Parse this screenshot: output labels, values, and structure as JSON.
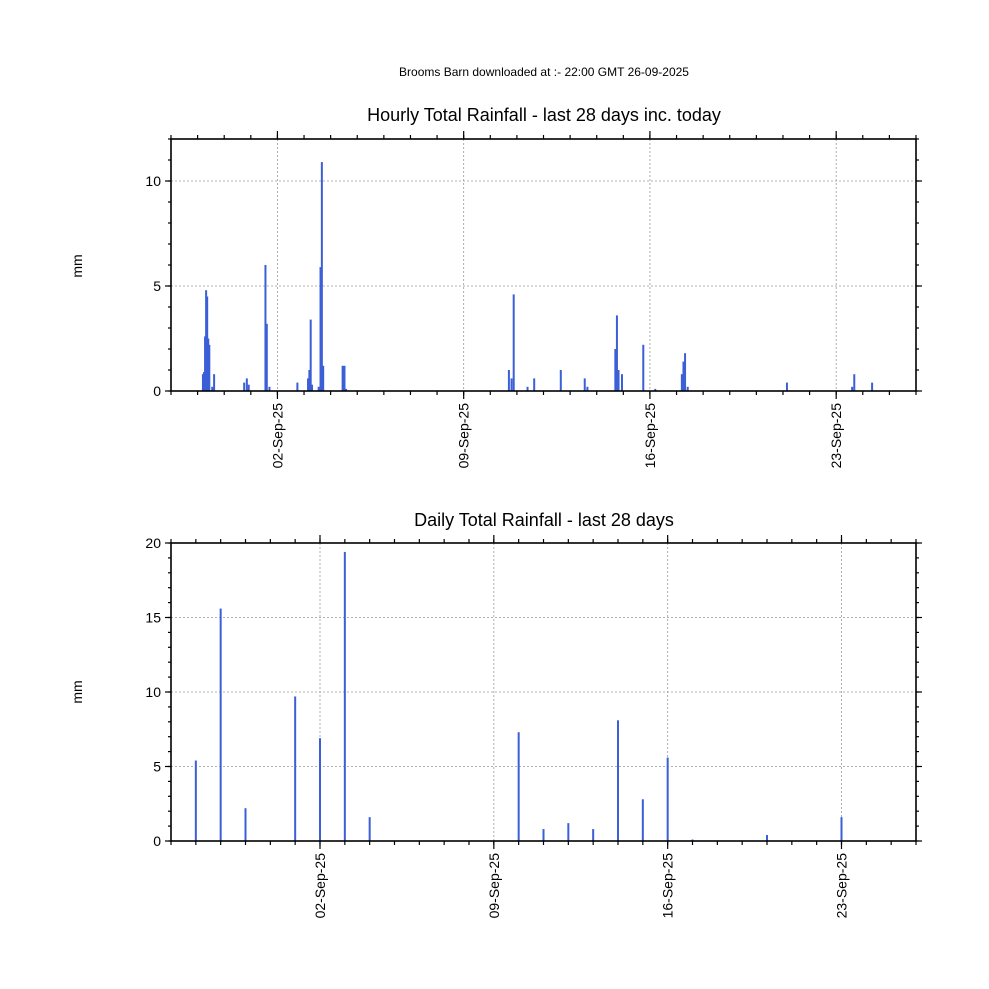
{
  "header": {
    "text": "Brooms Barn downloaded at :- 22:00 GMT 26-09-2025"
  },
  "chart_data": [
    {
      "type": "bar",
      "title": "Hourly Total Rainfall - last 28 days inc. today",
      "ylabel": "mm",
      "xlabel": "",
      "x_unit": "day (fractional, from 29-Aug-25 00:00)",
      "xlim": [
        0,
        28
      ],
      "ylim": [
        0,
        12
      ],
      "yticks": [
        0,
        5,
        10
      ],
      "xticks": [
        {
          "at": 4,
          "label": "02-Sep-25"
        },
        {
          "at": 11,
          "label": "09-Sep-25"
        },
        {
          "at": 18,
          "label": "16-Sep-25"
        },
        {
          "at": 25,
          "label": "23-Sep-25"
        }
      ],
      "grid": true,
      "color": "#3b5fd6",
      "bars": [
        {
          "x": 1.2,
          "y": 0.8
        },
        {
          "x": 1.24,
          "y": 0.9
        },
        {
          "x": 1.28,
          "y": 2.6
        },
        {
          "x": 1.32,
          "y": 4.8
        },
        {
          "x": 1.36,
          "y": 4.5
        },
        {
          "x": 1.4,
          "y": 2.5
        },
        {
          "x": 1.44,
          "y": 2.2
        },
        {
          "x": 1.55,
          "y": 0.2
        },
        {
          "x": 1.62,
          "y": 0.8
        },
        {
          "x": 2.75,
          "y": 0.4
        },
        {
          "x": 2.85,
          "y": 0.6
        },
        {
          "x": 2.92,
          "y": 0.3
        },
        {
          "x": 3.55,
          "y": 6.0
        },
        {
          "x": 3.6,
          "y": 3.2
        },
        {
          "x": 3.7,
          "y": 0.2
        },
        {
          "x": 4.75,
          "y": 0.4
        },
        {
          "x": 5.15,
          "y": 0.6
        },
        {
          "x": 5.2,
          "y": 1.0
        },
        {
          "x": 5.25,
          "y": 3.4
        },
        {
          "x": 5.3,
          "y": 0.3
        },
        {
          "x": 5.55,
          "y": 0.2
        },
        {
          "x": 5.62,
          "y": 5.9
        },
        {
          "x": 5.67,
          "y": 10.9
        },
        {
          "x": 5.72,
          "y": 1.2
        },
        {
          "x": 6.45,
          "y": 1.2
        },
        {
          "x": 6.52,
          "y": 1.2
        },
        {
          "x": 6.58,
          "y": 0.1
        },
        {
          "x": 12.7,
          "y": 1.0
        },
        {
          "x": 12.8,
          "y": 0.6
        },
        {
          "x": 12.88,
          "y": 4.6
        },
        {
          "x": 13.4,
          "y": 0.2
        },
        {
          "x": 13.65,
          "y": 0.6
        },
        {
          "x": 14.65,
          "y": 1.0
        },
        {
          "x": 15.55,
          "y": 0.6
        },
        {
          "x": 15.65,
          "y": 0.2
        },
        {
          "x": 16.7,
          "y": 2.0
        },
        {
          "x": 16.76,
          "y": 3.6
        },
        {
          "x": 16.82,
          "y": 1.0
        },
        {
          "x": 16.95,
          "y": 0.8
        },
        {
          "x": 17.75,
          "y": 2.2
        },
        {
          "x": 18.2,
          "y": 0.1
        },
        {
          "x": 19.2,
          "y": 0.8
        },
        {
          "x": 19.26,
          "y": 1.4
        },
        {
          "x": 19.32,
          "y": 1.8
        },
        {
          "x": 19.42,
          "y": 0.2
        },
        {
          "x": 23.15,
          "y": 0.4
        },
        {
          "x": 25.6,
          "y": 0.2
        },
        {
          "x": 25.68,
          "y": 0.8
        },
        {
          "x": 26.35,
          "y": 0.4
        }
      ]
    },
    {
      "type": "bar",
      "title": "Daily Total Rainfall - last 28 days",
      "ylabel": "mm",
      "xlabel": "",
      "x_unit": "day (from 28-Aug-25)",
      "xlim": [
        0,
        30
      ],
      "ylim": [
        0,
        20
      ],
      "yticks": [
        0,
        5,
        10,
        15,
        20
      ],
      "xticks": [
        {
          "at": 6,
          "label": "02-Sep-25"
        },
        {
          "at": 13,
          "label": "09-Sep-25"
        },
        {
          "at": 20,
          "label": "16-Sep-25"
        },
        {
          "at": 27,
          "label": "23-Sep-25"
        }
      ],
      "grid": true,
      "color": "#3b5fd6",
      "bars": [
        {
          "x": 1,
          "y": 5.4
        },
        {
          "x": 2,
          "y": 15.6
        },
        {
          "x": 3,
          "y": 2.2
        },
        {
          "x": 5,
          "y": 9.7
        },
        {
          "x": 6,
          "y": 6.9
        },
        {
          "x": 7,
          "y": 19.4
        },
        {
          "x": 8,
          "y": 1.6
        },
        {
          "x": 14,
          "y": 7.3
        },
        {
          "x": 15,
          "y": 0.8
        },
        {
          "x": 16,
          "y": 1.2
        },
        {
          "x": 17,
          "y": 0.8
        },
        {
          "x": 18,
          "y": 8.1
        },
        {
          "x": 19,
          "y": 2.8
        },
        {
          "x": 20,
          "y": 5.6
        },
        {
          "x": 21,
          "y": 0.1
        },
        {
          "x": 24,
          "y": 0.4
        },
        {
          "x": 27,
          "y": 1.6
        }
      ]
    }
  ]
}
